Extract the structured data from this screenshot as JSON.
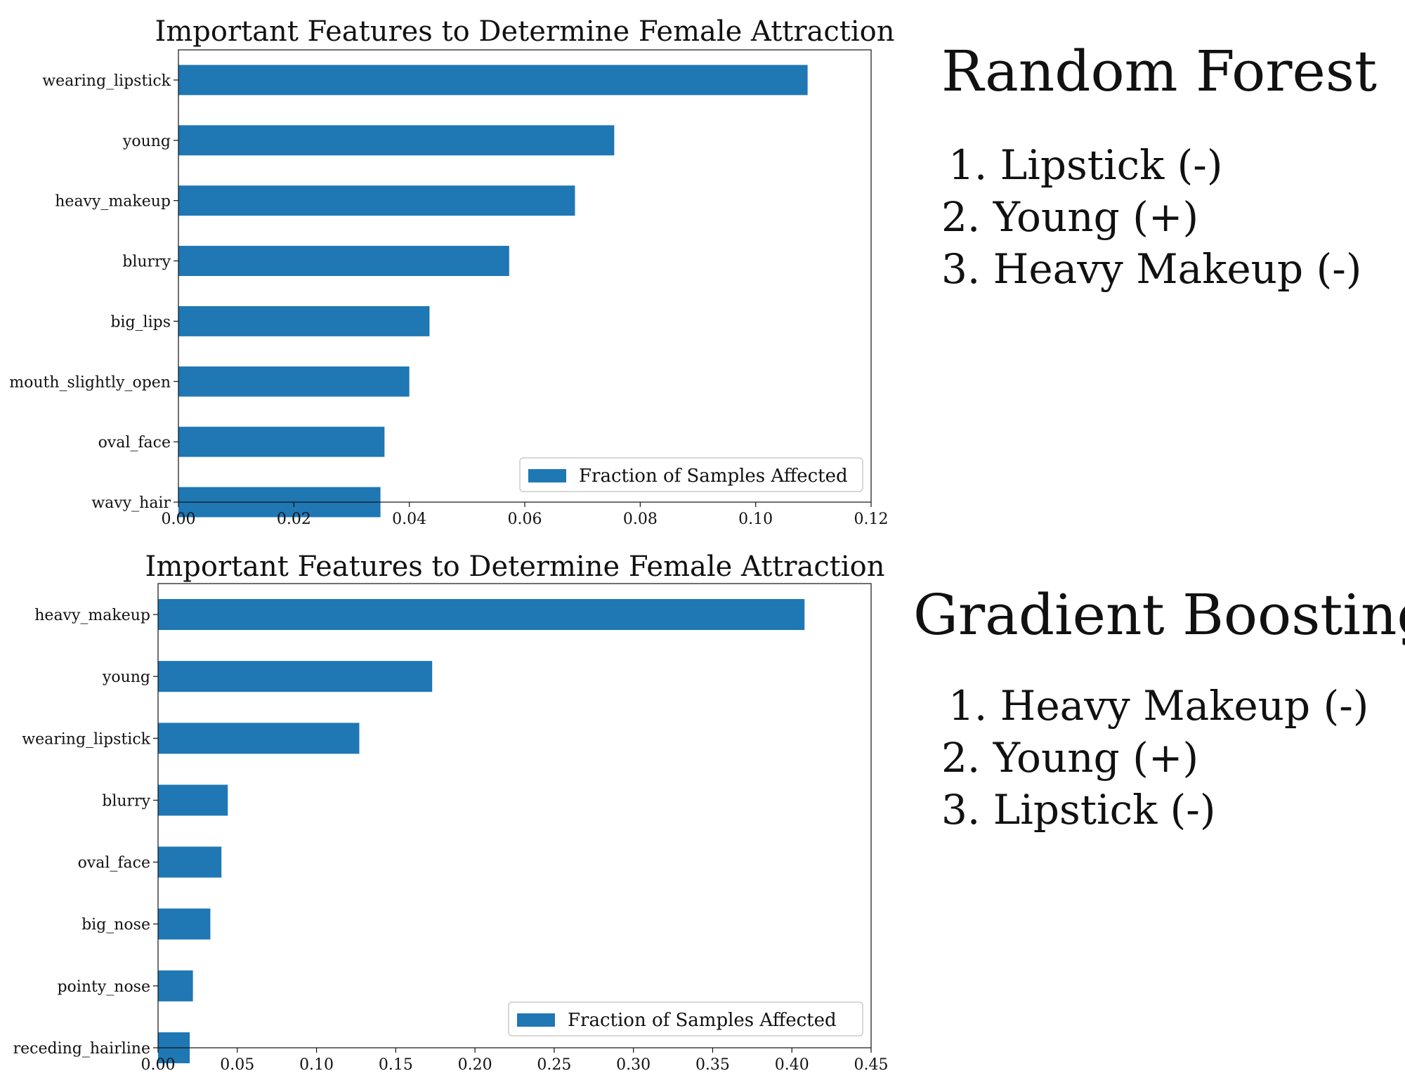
{
  "chart_data": [
    {
      "type": "bar",
      "orientation": "horizontal",
      "title": "Important Features to Determine Female Attraction",
      "categories": [
        "wearing_lipstick",
        "young",
        "heavy_makeup",
        "blurry",
        "big_lips",
        "mouth_slightly_open",
        "oval_face",
        "wavy_hair"
      ],
      "series": [
        {
          "name": "Fraction of Samples Affected",
          "values": [
            0.109,
            0.0755,
            0.0687,
            0.0573,
            0.0435,
            0.04,
            0.0357,
            0.035
          ]
        }
      ],
      "xlim": [
        0,
        0.12
      ],
      "xticks": [
        "0.00",
        "0.02",
        "0.04",
        "0.06",
        "0.08",
        "0.10",
        "0.12"
      ],
      "grid": false,
      "legend_position": "lower-right",
      "color": "#1f77b4"
    },
    {
      "type": "bar",
      "orientation": "horizontal",
      "title": "Important Features to Determine Female Attraction",
      "categories": [
        "heavy_makeup",
        "young",
        "wearing_lipstick",
        "blurry",
        "oval_face",
        "big_nose",
        "pointy_nose",
        "receding_hairline"
      ],
      "series": [
        {
          "name": "Fraction of Samples Affected",
          "values": [
            0.408,
            0.173,
            0.127,
            0.044,
            0.04,
            0.033,
            0.022,
            0.02
          ]
        }
      ],
      "xlim": [
        0,
        0.45
      ],
      "xticks": [
        "0.00",
        "0.05",
        "0.10",
        "0.15",
        "0.20",
        "0.25",
        "0.30",
        "0.35",
        "0.40",
        "0.45"
      ],
      "grid": false,
      "legend_position": "lower-right",
      "color": "#1f77b4"
    }
  ],
  "panels": [
    {
      "heading": "Random Forest",
      "items": [
        "1. Lipstick (-)",
        "2. Young (+)",
        "3. Heavy Makeup (-)"
      ]
    },
    {
      "heading": "Gradient Boosting",
      "items": [
        "1. Heavy Makeup (-)",
        "2. Young (+)",
        "3. Lipstick (-)"
      ]
    }
  ]
}
